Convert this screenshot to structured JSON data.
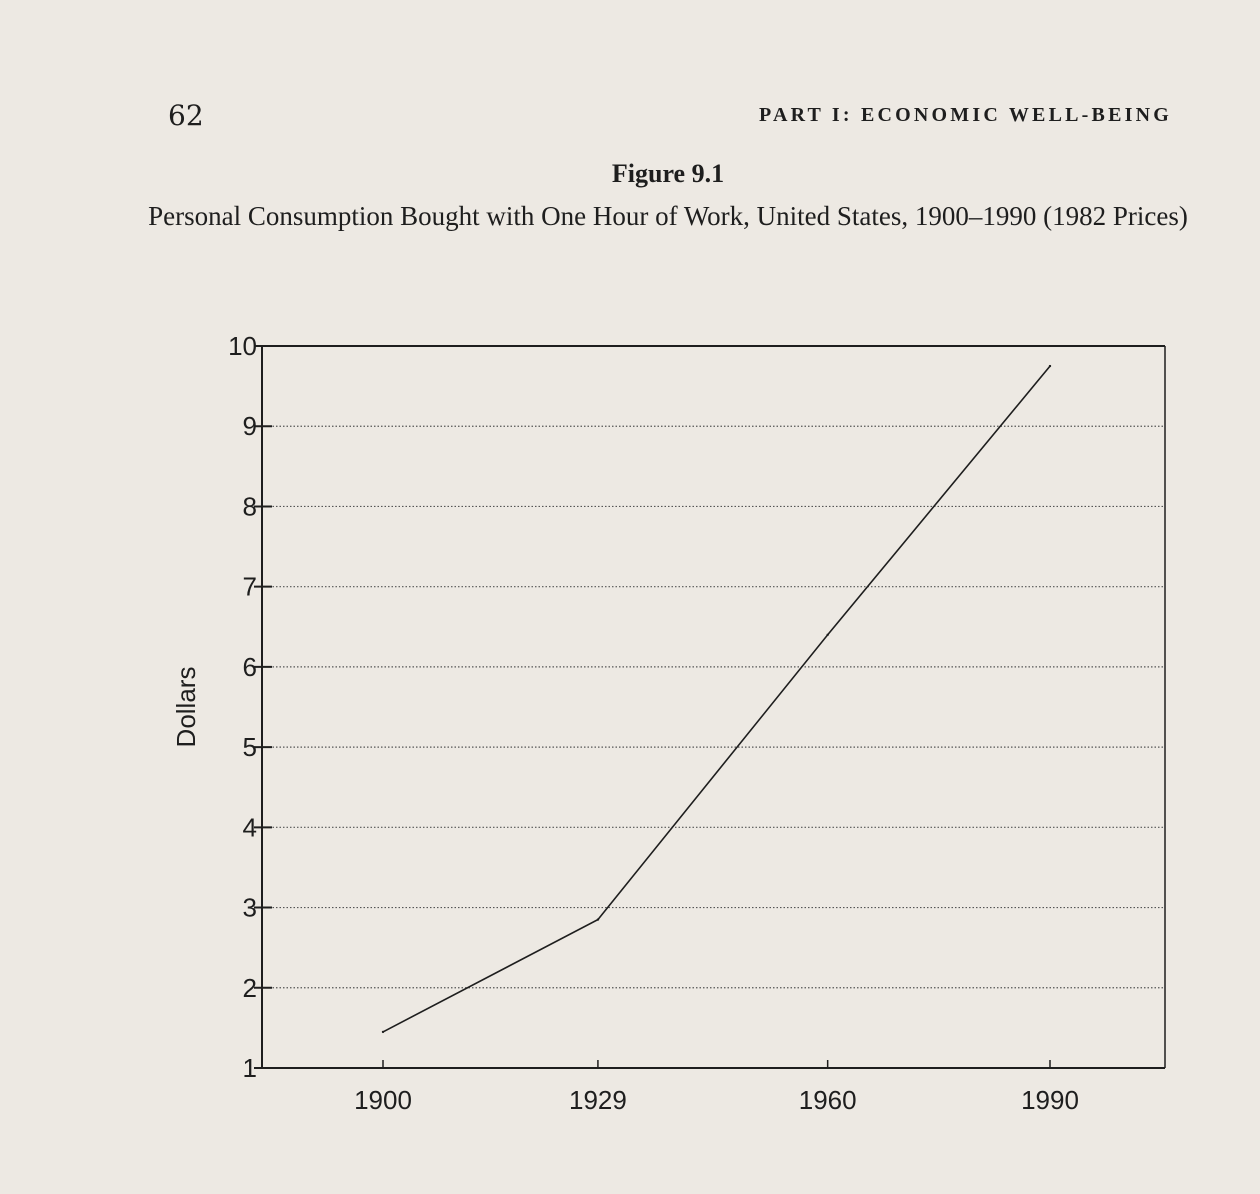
{
  "header": {
    "page_number": "62",
    "running_head": "PART I: ECONOMIC WELL-BEING"
  },
  "figure": {
    "label": "Figure 9.1",
    "caption": "Personal Consumption Bought with One Hour of Work, United States, 1900–1990 (1982 Prices)"
  },
  "chart_data": {
    "type": "line",
    "title": "Personal Consumption Bought with One Hour of Work, United States, 1900–1990 (1982 Prices)",
    "xlabel": "",
    "ylabel": "Dollars",
    "x": [
      1900,
      1929,
      1960,
      1990
    ],
    "x_tick_labels": [
      "1900",
      "1929",
      "1960",
      "1990"
    ],
    "series": [
      {
        "values": [
          1.45,
          2.85,
          6.4,
          9.75
        ]
      }
    ],
    "ylim": [
      1,
      10
    ],
    "y_ticks": [
      1,
      2,
      3,
      4,
      5,
      6,
      7,
      8,
      9,
      10
    ],
    "y_tick_labels": [
      "1",
      "2",
      "3",
      "4",
      "5",
      "6",
      "7",
      "8",
      "9",
      "10"
    ],
    "grid": "horizontal dotted",
    "legend": "none",
    "colors": {
      "line": "#1e1e1e",
      "grid": "#555555",
      "background": "#ede9e3"
    }
  }
}
